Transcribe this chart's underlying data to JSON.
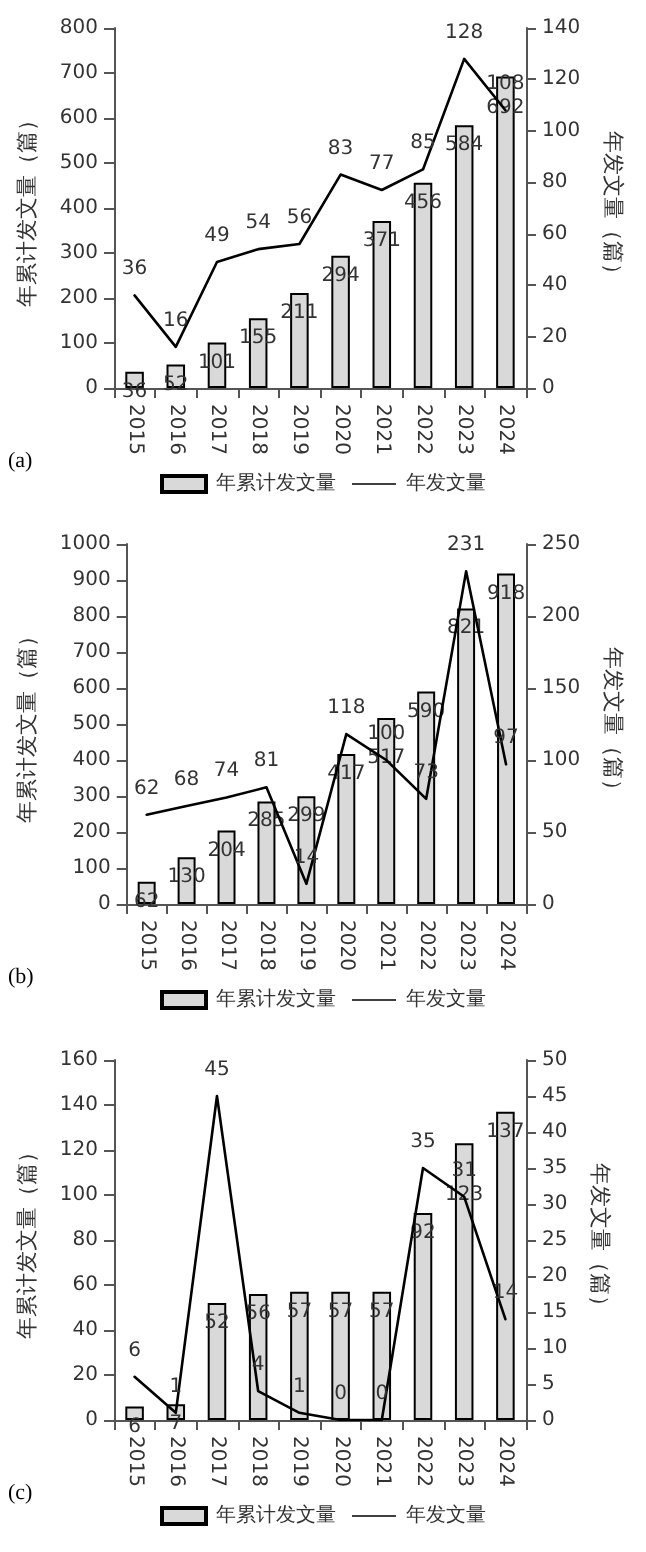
{
  "chart_data": [
    {
      "type": "bar",
      "annotations": [
        "(a)"
      ],
      "ylabel": "年累计发文量（篇）",
      "y2label": "年发文量（篇）",
      "categories": [
        "2015",
        "2016",
        "2017",
        "2018",
        "2019",
        "2020",
        "2021",
        "2022",
        "2023",
        "2024"
      ],
      "series": [
        {
          "name": "年累计发文量",
          "color": "#d9d9d9",
          "values": [
            36,
            52,
            101,
            155,
            211,
            294,
            371,
            456,
            584,
            692
          ]
        },
        {
          "name": "年发文量",
          "type": "line",
          "axis": "y2",
          "color": "#000000",
          "values": [
            36,
            16,
            49,
            54,
            56,
            83,
            77,
            85,
            128,
            108
          ]
        }
      ],
      "ylim": [
        0,
        800
      ],
      "yticks": [
        0,
        100,
        200,
        300,
        400,
        500,
        600,
        700,
        800
      ],
      "y2lim": [
        0,
        140
      ],
      "y2ticks": [
        0,
        20,
        40,
        60,
        80,
        100,
        120,
        140
      ],
      "data_labels": true,
      "legend": "bottom",
      "marker": "none",
      "line_style": "solid"
    },
    {
      "type": "bar",
      "annotations": [
        "(b)"
      ],
      "ylabel": "年累计发文量（篇）",
      "y2label": "年发文量（篇）",
      "categories": [
        "2015",
        "2016",
        "2017",
        "2018",
        "2019",
        "2020",
        "2021",
        "2022",
        "2023",
        "2024"
      ],
      "series": [
        {
          "name": "年累计发文量",
          "color": "#d9d9d9",
          "values": [
            62,
            130,
            204,
            285,
            299,
            417,
            517,
            590,
            821,
            918
          ]
        },
        {
          "name": "年发文量",
          "type": "line",
          "axis": "y2",
          "color": "#000000",
          "values": [
            62,
            68,
            74,
            81,
            14,
            118,
            100,
            73,
            231,
            97
          ]
        }
      ],
      "ylim": [
        0,
        1000
      ],
      "yticks": [
        0,
        100,
        200,
        300,
        400,
        500,
        600,
        700,
        800,
        900,
        1000
      ],
      "y2lim": [
        0,
        250
      ],
      "y2ticks": [
        0,
        50,
        100,
        150,
        200,
        250
      ],
      "data_labels": true,
      "legend": "bottom",
      "marker": "none",
      "line_style": "solid"
    },
    {
      "type": "bar",
      "annotations": [
        "(c)"
      ],
      "ylabel": "年累计发文量（篇）",
      "y2label": "年发文量（篇）",
      "categories": [
        "2015",
        "2016",
        "2017",
        "2018",
        "2019",
        "2020",
        "2021",
        "2022",
        "2023",
        "2024"
      ],
      "series": [
        {
          "name": "年累计发文量",
          "color": "#d9d9d9",
          "values": [
            6,
            7,
            52,
            56,
            57,
            57,
            57,
            92,
            123,
            137
          ]
        },
        {
          "name": "年发文量",
          "type": "line",
          "axis": "y2",
          "color": "#000000",
          "values": [
            6,
            1,
            45,
            4,
            1,
            0,
            0,
            35,
            31,
            14
          ]
        }
      ],
      "ylim": [
        0,
        160
      ],
      "yticks": [
        0,
        20,
        40,
        60,
        80,
        100,
        120,
        140,
        160
      ],
      "y2lim": [
        0,
        50
      ],
      "y2ticks": [
        0,
        5,
        10,
        15,
        20,
        25,
        30,
        35,
        40,
        45,
        50
      ],
      "data_labels": true,
      "legend": "bottom",
      "marker": "none",
      "line_style": "solid"
    }
  ]
}
